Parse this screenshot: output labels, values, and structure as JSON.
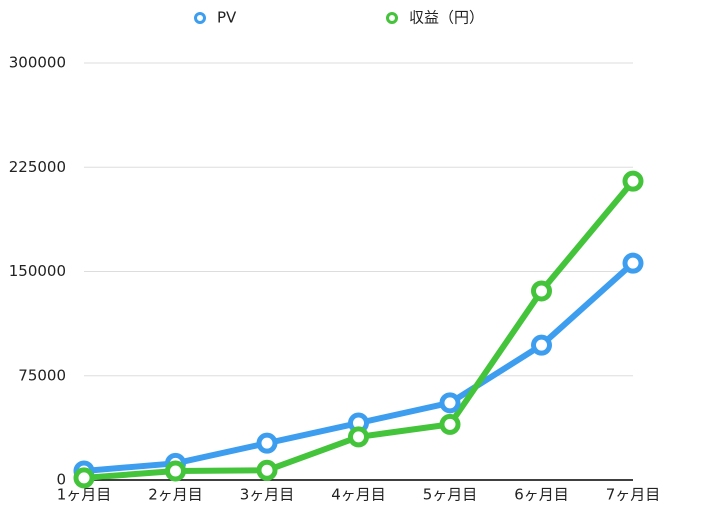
{
  "chart_data": {
    "type": "line",
    "categories": [
      "1ヶ月目",
      "2ヶ月目",
      "3ヶ月目",
      "4ヶ月目",
      "5ヶ月目",
      "6ヶ月目",
      "7ヶ月目"
    ],
    "series": [
      {
        "name": "PV",
        "color": "#3d9ef0",
        "values": [
          6500,
          12000,
          26500,
          41000,
          55500,
          97000,
          156000
        ]
      },
      {
        "name": "収益（円）",
        "color": "#44c43a",
        "values": [
          1500,
          6500,
          7000,
          31000,
          40000,
          136000,
          215000
        ]
      }
    ],
    "ylim": [
      0,
      300000
    ],
    "yticks": [
      0,
      75000,
      150000,
      225000,
      300000
    ],
    "grid": true
  }
}
